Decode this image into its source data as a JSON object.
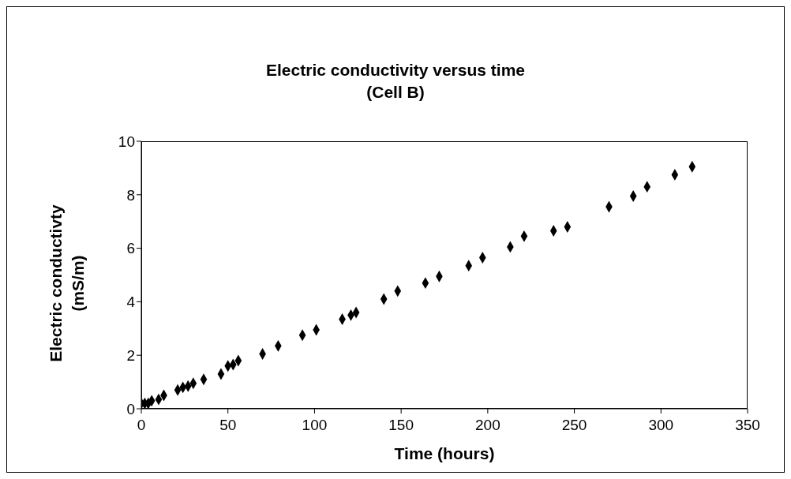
{
  "chart_data": {
    "type": "scatter",
    "title": "Electric conductivity versus time",
    "subtitle": "(Cell B)",
    "xlabel": "Time (hours)",
    "ylabel": "Electric conductivty (mS/m)",
    "x": [
      0,
      2,
      4,
      6,
      10,
      13,
      21,
      24,
      27,
      30,
      36,
      46,
      50,
      53,
      56,
      70,
      79,
      93,
      101,
      116,
      121,
      124,
      140,
      148,
      164,
      172,
      189,
      197,
      213,
      221,
      238,
      246,
      270,
      284,
      292,
      308,
      318
    ],
    "values": [
      0.2,
      0.2,
      0.2,
      0.3,
      0.35,
      0.5,
      0.7,
      0.8,
      0.85,
      0.95,
      1.1,
      1.3,
      1.6,
      1.65,
      1.8,
      2.05,
      2.35,
      2.75,
      2.95,
      3.35,
      3.5,
      3.6,
      4.1,
      4.4,
      4.7,
      4.95,
      5.35,
      5.65,
      6.05,
      6.45,
      6.65,
      6.8,
      7.55,
      7.95,
      8.3,
      8.75,
      9.05
    ],
    "color": "#000000",
    "marker": "diamond",
    "xlim": [
      0,
      350
    ],
    "xticks": [
      0,
      50,
      100,
      150,
      200,
      250,
      300,
      350
    ],
    "ylim": [
      0,
      10
    ],
    "yticks": [
      0,
      2,
      4,
      6,
      8,
      10
    ],
    "grid": false,
    "legend": false
  }
}
